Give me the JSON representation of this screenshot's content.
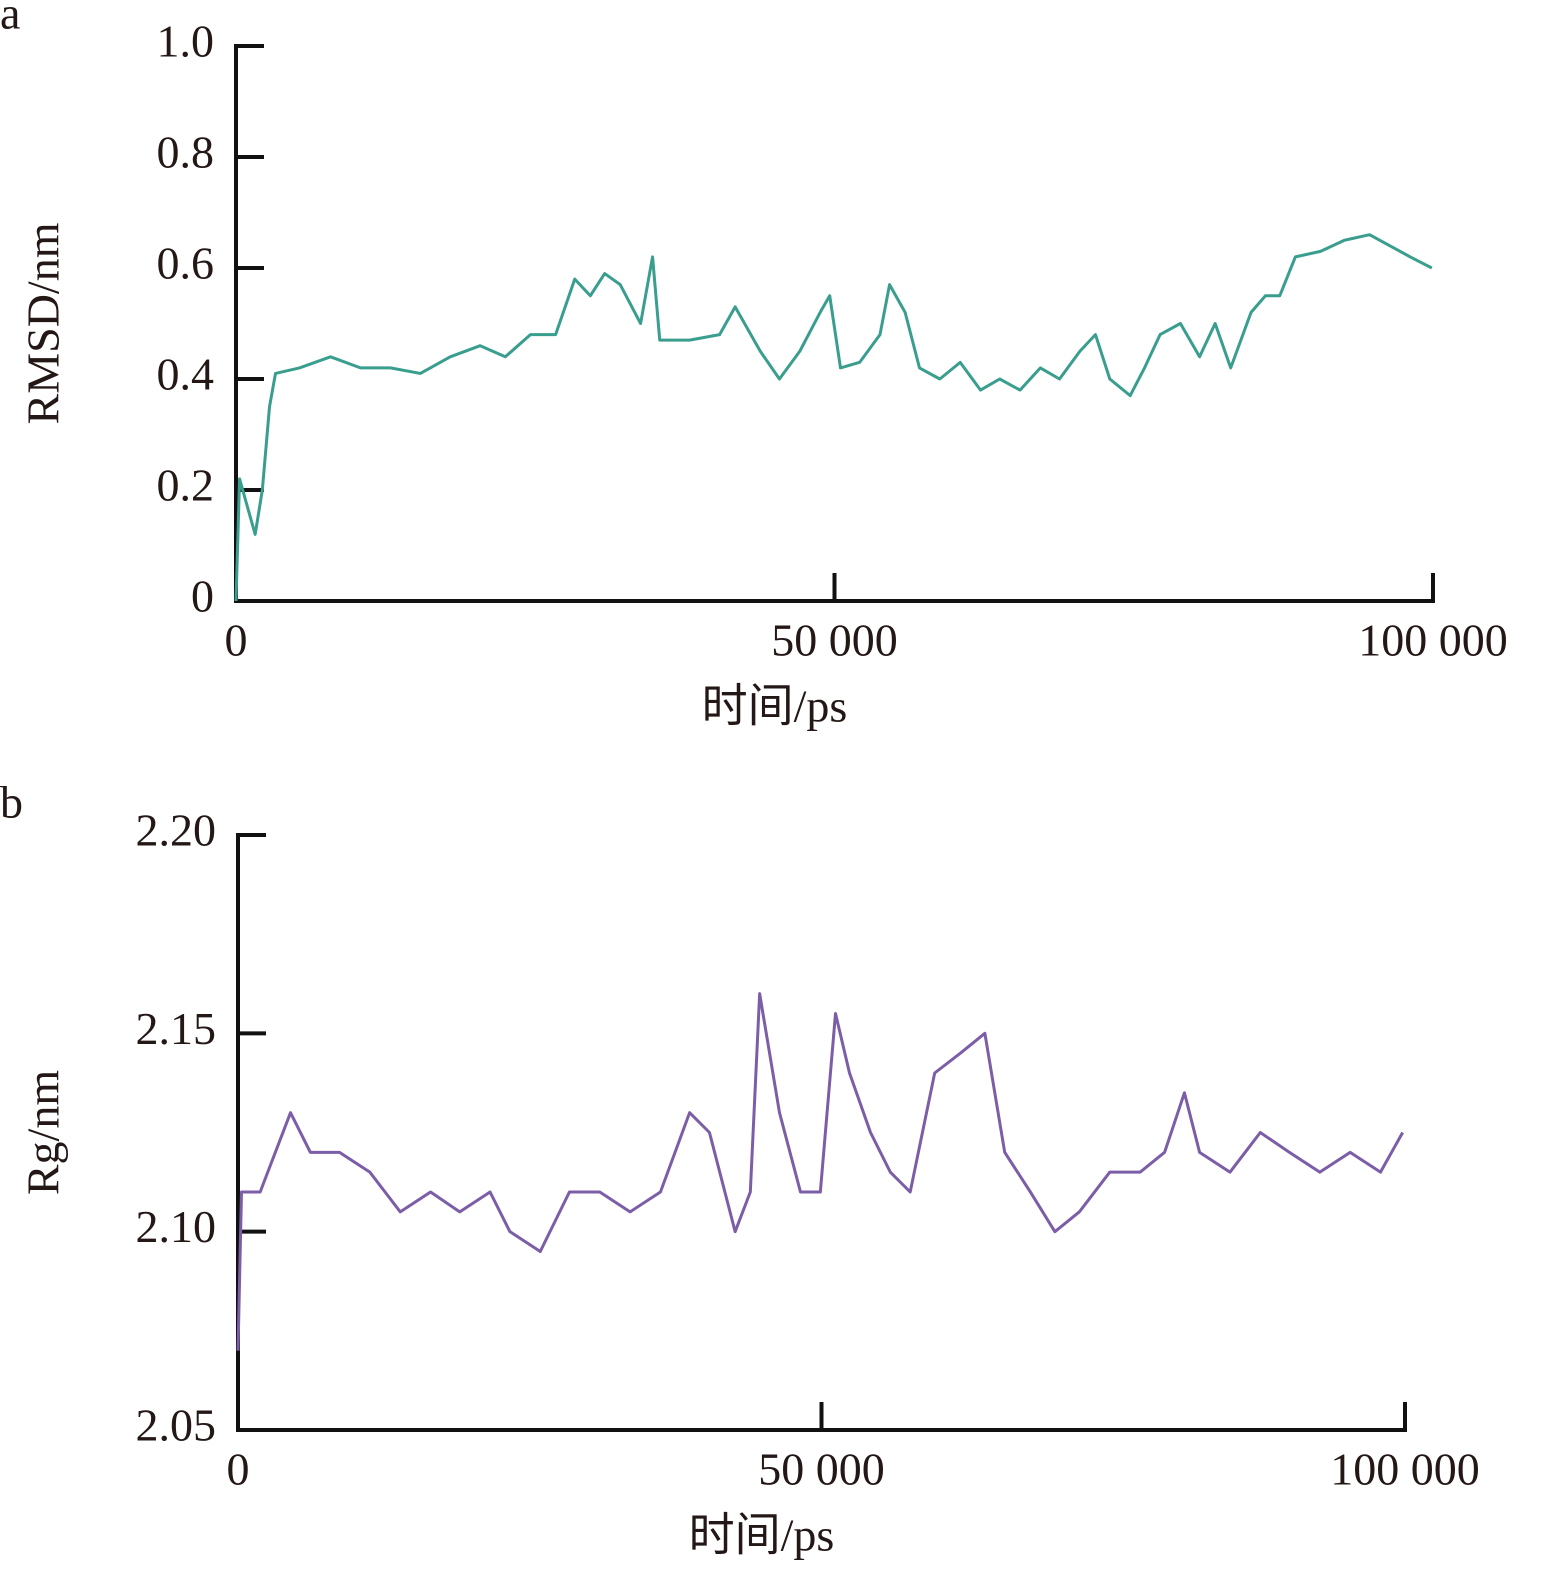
{
  "chart_data": [
    {
      "type": "line",
      "panel": "a",
      "xlabel": "时间/ps",
      "ylabel": "RMSD/nm",
      "xlim": [
        0,
        100000
      ],
      "ylim": [
        0,
        1
      ],
      "xticks": [
        0,
        {
          "value": 50000,
          "label": "50 000"
        },
        {
          "value": 100000,
          "label": "100 000"
        }
      ],
      "yticks": [
        0,
        0.2,
        0.4,
        0.6,
        0.8,
        {
          "value": 1,
          "label": "1.0"
        }
      ],
      "series": [
        {
          "color": "#3a9e8f",
          "x": [
            0,
            300,
            1600,
            2200,
            2800,
            3300,
            5300,
            7900,
            10400,
            12900,
            15400,
            17900,
            20400,
            22500,
            24600,
            26700,
            28300,
            29600,
            30800,
            32100,
            33800,
            34800,
            35400,
            37900,
            40400,
            41700,
            43800,
            45400,
            47100,
            48800,
            49600,
            50500,
            52100,
            53800,
            54600,
            55900,
            57100,
            58800,
            60500,
            62200,
            63800,
            65500,
            67200,
            68800,
            70500,
            71800,
            73000,
            74700,
            75900,
            77200,
            78900,
            80500,
            81800,
            83100,
            84800,
            86000,
            87200,
            88500,
            90600,
            92600,
            94700,
            96400,
            98100,
            99900
          ],
          "values": [
            0,
            0.22,
            0.12,
            0.2,
            0.35,
            0.41,
            0.42,
            0.44,
            0.42,
            0.42,
            0.41,
            0.44,
            0.46,
            0.44,
            0.48,
            0.48,
            0.58,
            0.55,
            0.59,
            0.57,
            0.5,
            0.62,
            0.47,
            0.47,
            0.48,
            0.53,
            0.45,
            0.4,
            0.45,
            0.52,
            0.55,
            0.42,
            0.43,
            0.48,
            0.57,
            0.52,
            0.42,
            0.4,
            0.43,
            0.38,
            0.4,
            0.38,
            0.42,
            0.4,
            0.45,
            0.48,
            0.4,
            0.37,
            0.42,
            0.48,
            0.5,
            0.44,
            0.5,
            0.42,
            0.52,
            0.55,
            0.55,
            0.62,
            0.63,
            0.65,
            0.66,
            0.64,
            0.62,
            0.6
          ]
        }
      ]
    },
    {
      "type": "line",
      "panel": "b",
      "xlabel": "时间/ps",
      "ylabel": "Rg/nm",
      "xlim": [
        0,
        100000
      ],
      "ylim": [
        2.05,
        2.2
      ],
      "xticks": [
        0,
        {
          "value": 50000,
          "label": "50 000"
        },
        {
          "value": 100000,
          "label": "100 000"
        }
      ],
      "yticks": [
        2.05,
        {
          "value": 2.1,
          "label": "2.10"
        },
        2.15,
        {
          "value": 2.2,
          "label": "2.20"
        }
      ],
      "series": [
        {
          "color": "#7b5ea7",
          "x": [
            0,
            300,
            1900,
            4500,
            6200,
            8700,
            11300,
            13900,
            16500,
            19000,
            21600,
            23300,
            25900,
            28400,
            31000,
            33600,
            36200,
            38700,
            40400,
            42600,
            43900,
            44700,
            46400,
            48200,
            49900,
            51200,
            52400,
            54200,
            55900,
            57600,
            59700,
            61900,
            64000,
            65700,
            67900,
            70000,
            72100,
            74700,
            77300,
            79400,
            81100,
            82400,
            85000,
            87600,
            90100,
            92700,
            95300,
            97900,
            99800
          ],
          "values": [
            2.07,
            2.11,
            2.11,
            2.13,
            2.12,
            2.12,
            2.115,
            2.105,
            2.11,
            2.105,
            2.11,
            2.1,
            2.095,
            2.11,
            2.11,
            2.105,
            2.11,
            2.13,
            2.125,
            2.1,
            2.11,
            2.16,
            2.13,
            2.11,
            2.11,
            2.155,
            2.14,
            2.125,
            2.115,
            2.11,
            2.14,
            2.145,
            2.15,
            2.12,
            2.11,
            2.1,
            2.105,
            2.115,
            2.115,
            2.12,
            2.135,
            2.12,
            2.115,
            2.125,
            2.12,
            2.115,
            2.12,
            2.115,
            2.125
          ]
        }
      ]
    }
  ]
}
